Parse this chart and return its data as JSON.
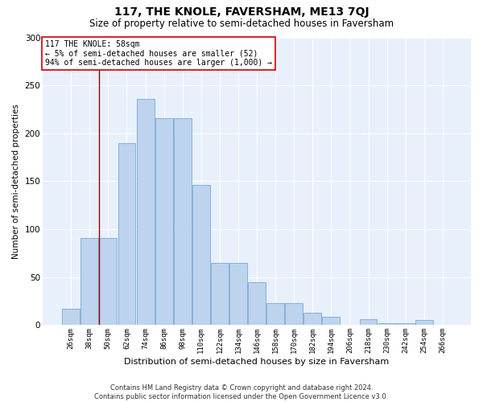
{
  "title": "117, THE KNOLE, FAVERSHAM, ME13 7QJ",
  "subtitle": "Size of property relative to semi-detached houses in Faversham",
  "xlabel": "Distribution of semi-detached houses by size in Faversham",
  "ylabel": "Number of semi-detached properties",
  "categories": [
    "26sqm",
    "38sqm",
    "50sqm",
    "62sqm",
    "74sqm",
    "86sqm",
    "98sqm",
    "110sqm",
    "122sqm",
    "134sqm",
    "146sqm",
    "158sqm",
    "170sqm",
    "182sqm",
    "194sqm",
    "206sqm",
    "218sqm",
    "230sqm",
    "242sqm",
    "254sqm",
    "266sqm"
  ],
  "values": [
    17,
    91,
    91,
    190,
    236,
    216,
    216,
    146,
    65,
    65,
    45,
    23,
    23,
    13,
    9,
    0,
    6,
    2,
    2,
    5,
    0
  ],
  "bar_color": "#bdd3ee",
  "bar_edge_color": "#7aaad4",
  "background_color": "#e8f0fb",
  "grid_color": "#ffffff",
  "annotation_text_line1": "117 THE KNOLE: 58sqm",
  "annotation_text_line2": "← 5% of semi-detached houses are smaller (52)",
  "annotation_text_line3": "94% of semi-detached houses are larger (1,000) →",
  "redline_x": 1.5,
  "footer_line1": "Contains HM Land Registry data © Crown copyright and database right 2024.",
  "footer_line2": "Contains public sector information licensed under the Open Government Licence v3.0.",
  "ylim": [
    0,
    300
  ],
  "yticks": [
    0,
    50,
    100,
    150,
    200,
    250,
    300
  ],
  "title_fontsize": 10,
  "subtitle_fontsize": 8.5,
  "ylabel_fontsize": 7.5,
  "xlabel_fontsize": 8,
  "tick_fontsize": 6.5,
  "annotation_fontsize": 7,
  "footer_fontsize": 6
}
